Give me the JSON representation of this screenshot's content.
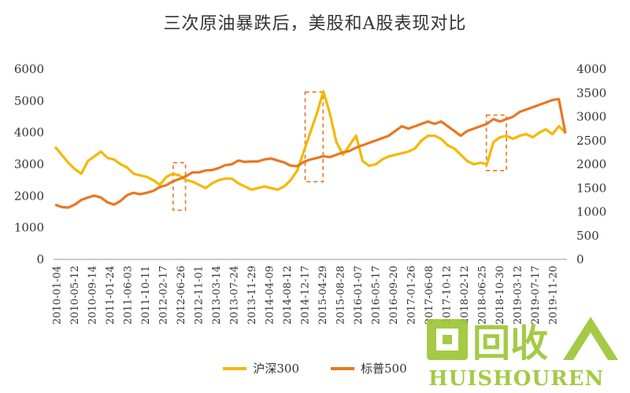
{
  "chart_data": {
    "type": "line",
    "title": "三次原油暴跌后，美股和A股表现对比",
    "x_ticks": [
      "2010-01-04",
      "2010-05-12",
      "2010-09-14",
      "2011-01-24",
      "2011-06-03",
      "2011-10-11",
      "2012-02-17",
      "2012-06-26",
      "2012-11-01",
      "2013-03-14",
      "2013-07-24",
      "2013-11-29",
      "2014-04-09",
      "2014-08-12",
      "2014-12-17",
      "2015-04-29",
      "2015-08-28",
      "2016-01-07",
      "2016-05-17",
      "2016-09-20",
      "2017-01-26",
      "2017-06-08",
      "2017-10-12",
      "2018-02-12",
      "2018-06-25",
      "2018-10-30",
      "2019-03-12",
      "2019-07-17",
      "2019-11-20"
    ],
    "y_left": {
      "min": 0,
      "max": 6000,
      "ticks": [
        "0",
        "1000",
        "2000",
        "3000",
        "4000",
        "5000",
        "6000"
      ]
    },
    "y_right": {
      "min": 0,
      "max": 4000,
      "ticks": [
        "0",
        "500",
        "1000",
        "1500",
        "2000",
        "2500",
        "3000",
        "3500",
        "4000"
      ]
    },
    "series": [
      {
        "name": "沪深300",
        "axis": "left",
        "color": "#F5B800",
        "values": [
          3550,
          3300,
          3050,
          2850,
          2700,
          3100,
          3250,
          3400,
          3200,
          3150,
          3000,
          2900,
          2700,
          2650,
          2600,
          2500,
          2350,
          2600,
          2700,
          2650,
          2500,
          2450,
          2350,
          2250,
          2400,
          2500,
          2550,
          2550,
          2400,
          2300,
          2200,
          2250,
          2300,
          2250,
          2200,
          2300,
          2500,
          2800,
          3400,
          4000,
          4600,
          5300,
          4600,
          3700,
          3300,
          3600,
          3900,
          3100,
          2950,
          3000,
          3150,
          3250,
          3300,
          3350,
          3400,
          3500,
          3750,
          3900,
          3900,
          3800,
          3600,
          3500,
          3300,
          3100,
          3000,
          3050,
          3000,
          3700,
          3850,
          3900,
          3800,
          3900,
          3950,
          3850,
          4000,
          4100,
          3950,
          4200,
          4000
        ]
      },
      {
        "name": "标普500",
        "axis": "right",
        "color": "#E87722",
        "values": [
          1150,
          1100,
          1090,
          1150,
          1250,
          1300,
          1340,
          1300,
          1200,
          1150,
          1230,
          1350,
          1400,
          1370,
          1400,
          1440,
          1520,
          1560,
          1640,
          1690,
          1750,
          1830,
          1830,
          1870,
          1880,
          1920,
          1980,
          2000,
          2080,
          2050,
          2060,
          2060,
          2100,
          2120,
          2080,
          2040,
          1970,
          1960,
          2050,
          2100,
          2130,
          2170,
          2150,
          2200,
          2250,
          2280,
          2350,
          2400,
          2450,
          2500,
          2550,
          2600,
          2700,
          2800,
          2750,
          2800,
          2850,
          2900,
          2850,
          2900,
          2800,
          2700,
          2600,
          2700,
          2750,
          2800,
          2850,
          2950,
          2900,
          2950,
          3000,
          3100,
          3150,
          3200,
          3250,
          3300,
          3350,
          3370,
          2650
        ]
      }
    ],
    "highlight_boxes": [
      {
        "x_start": 0.233,
        "x_end": 0.257,
        "y_top": 3050,
        "y_bottom": 1550
      },
      {
        "x_start": 0.49,
        "x_end": 0.525,
        "y_top": 5280,
        "y_bottom": 2450
      },
      {
        "x_start": 0.843,
        "x_end": 0.882,
        "y_top": 4550,
        "y_bottom": 2800
      }
    ],
    "grid": false,
    "legend_position": "bottom"
  },
  "watermark": {
    "text": "回收",
    "sub": "HUISHOUREN"
  }
}
